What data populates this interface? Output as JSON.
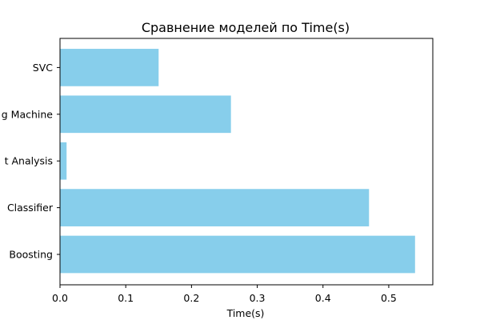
{
  "chart_data": {
    "type": "bar",
    "orientation": "horizontal",
    "title": "Сравнение моделей по Time(s)",
    "xlabel": "Time(s)",
    "ylabel": "",
    "categories": [
      "Gradient Boosting",
      "Random Forest Classifier",
      "Linear Discriminant Analysis",
      "Light Gradient Boosting Machine",
      "SVC"
    ],
    "category_labels_visible": [
      "Boosting",
      "Classifier",
      "t Analysis",
      "g Machine",
      "SVC"
    ],
    "values": [
      0.54,
      0.47,
      0.01,
      0.26,
      0.15
    ],
    "xlim": [
      0,
      0.567
    ],
    "xticks": [
      0.0,
      0.1,
      0.2,
      0.3,
      0.4,
      0.5
    ],
    "xtick_labels": [
      "0.0",
      "0.1",
      "0.2",
      "0.3",
      "0.4",
      "0.5"
    ],
    "bar_color": "#87ceeb",
    "grid": false,
    "legend": "none"
  }
}
